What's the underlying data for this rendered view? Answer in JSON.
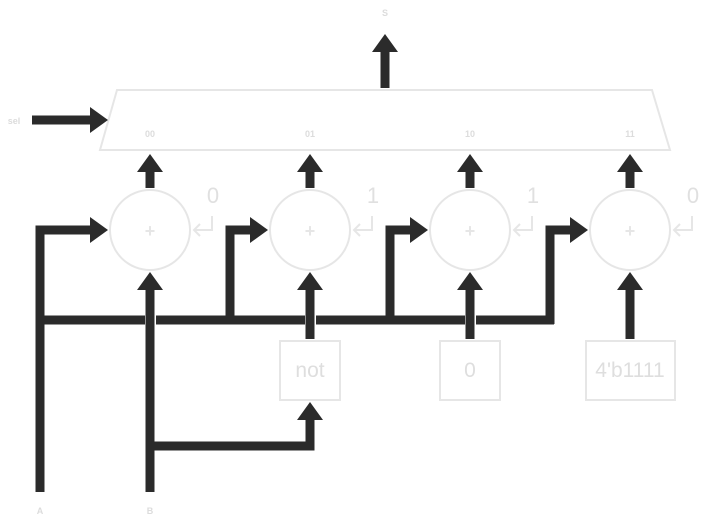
{
  "mux": {
    "output_label": "S",
    "select_label": "sel",
    "inputs": [
      "00",
      "01",
      "10",
      "11"
    ]
  },
  "adders": [
    {
      "symbol": "+",
      "carry_in": "0"
    },
    {
      "symbol": "+",
      "carry_in": "1"
    },
    {
      "symbol": "+",
      "carry_in": "1"
    },
    {
      "symbol": "+",
      "carry_in": "0"
    }
  ],
  "blocks": {
    "not_label": "not",
    "zero_label": "0",
    "ones_label": "4'b1111"
  },
  "inputs": {
    "a_label": "A",
    "b_label": "B"
  },
  "colors": {
    "wire": "#2b2b2b",
    "ghost": "#e6e6e6"
  }
}
